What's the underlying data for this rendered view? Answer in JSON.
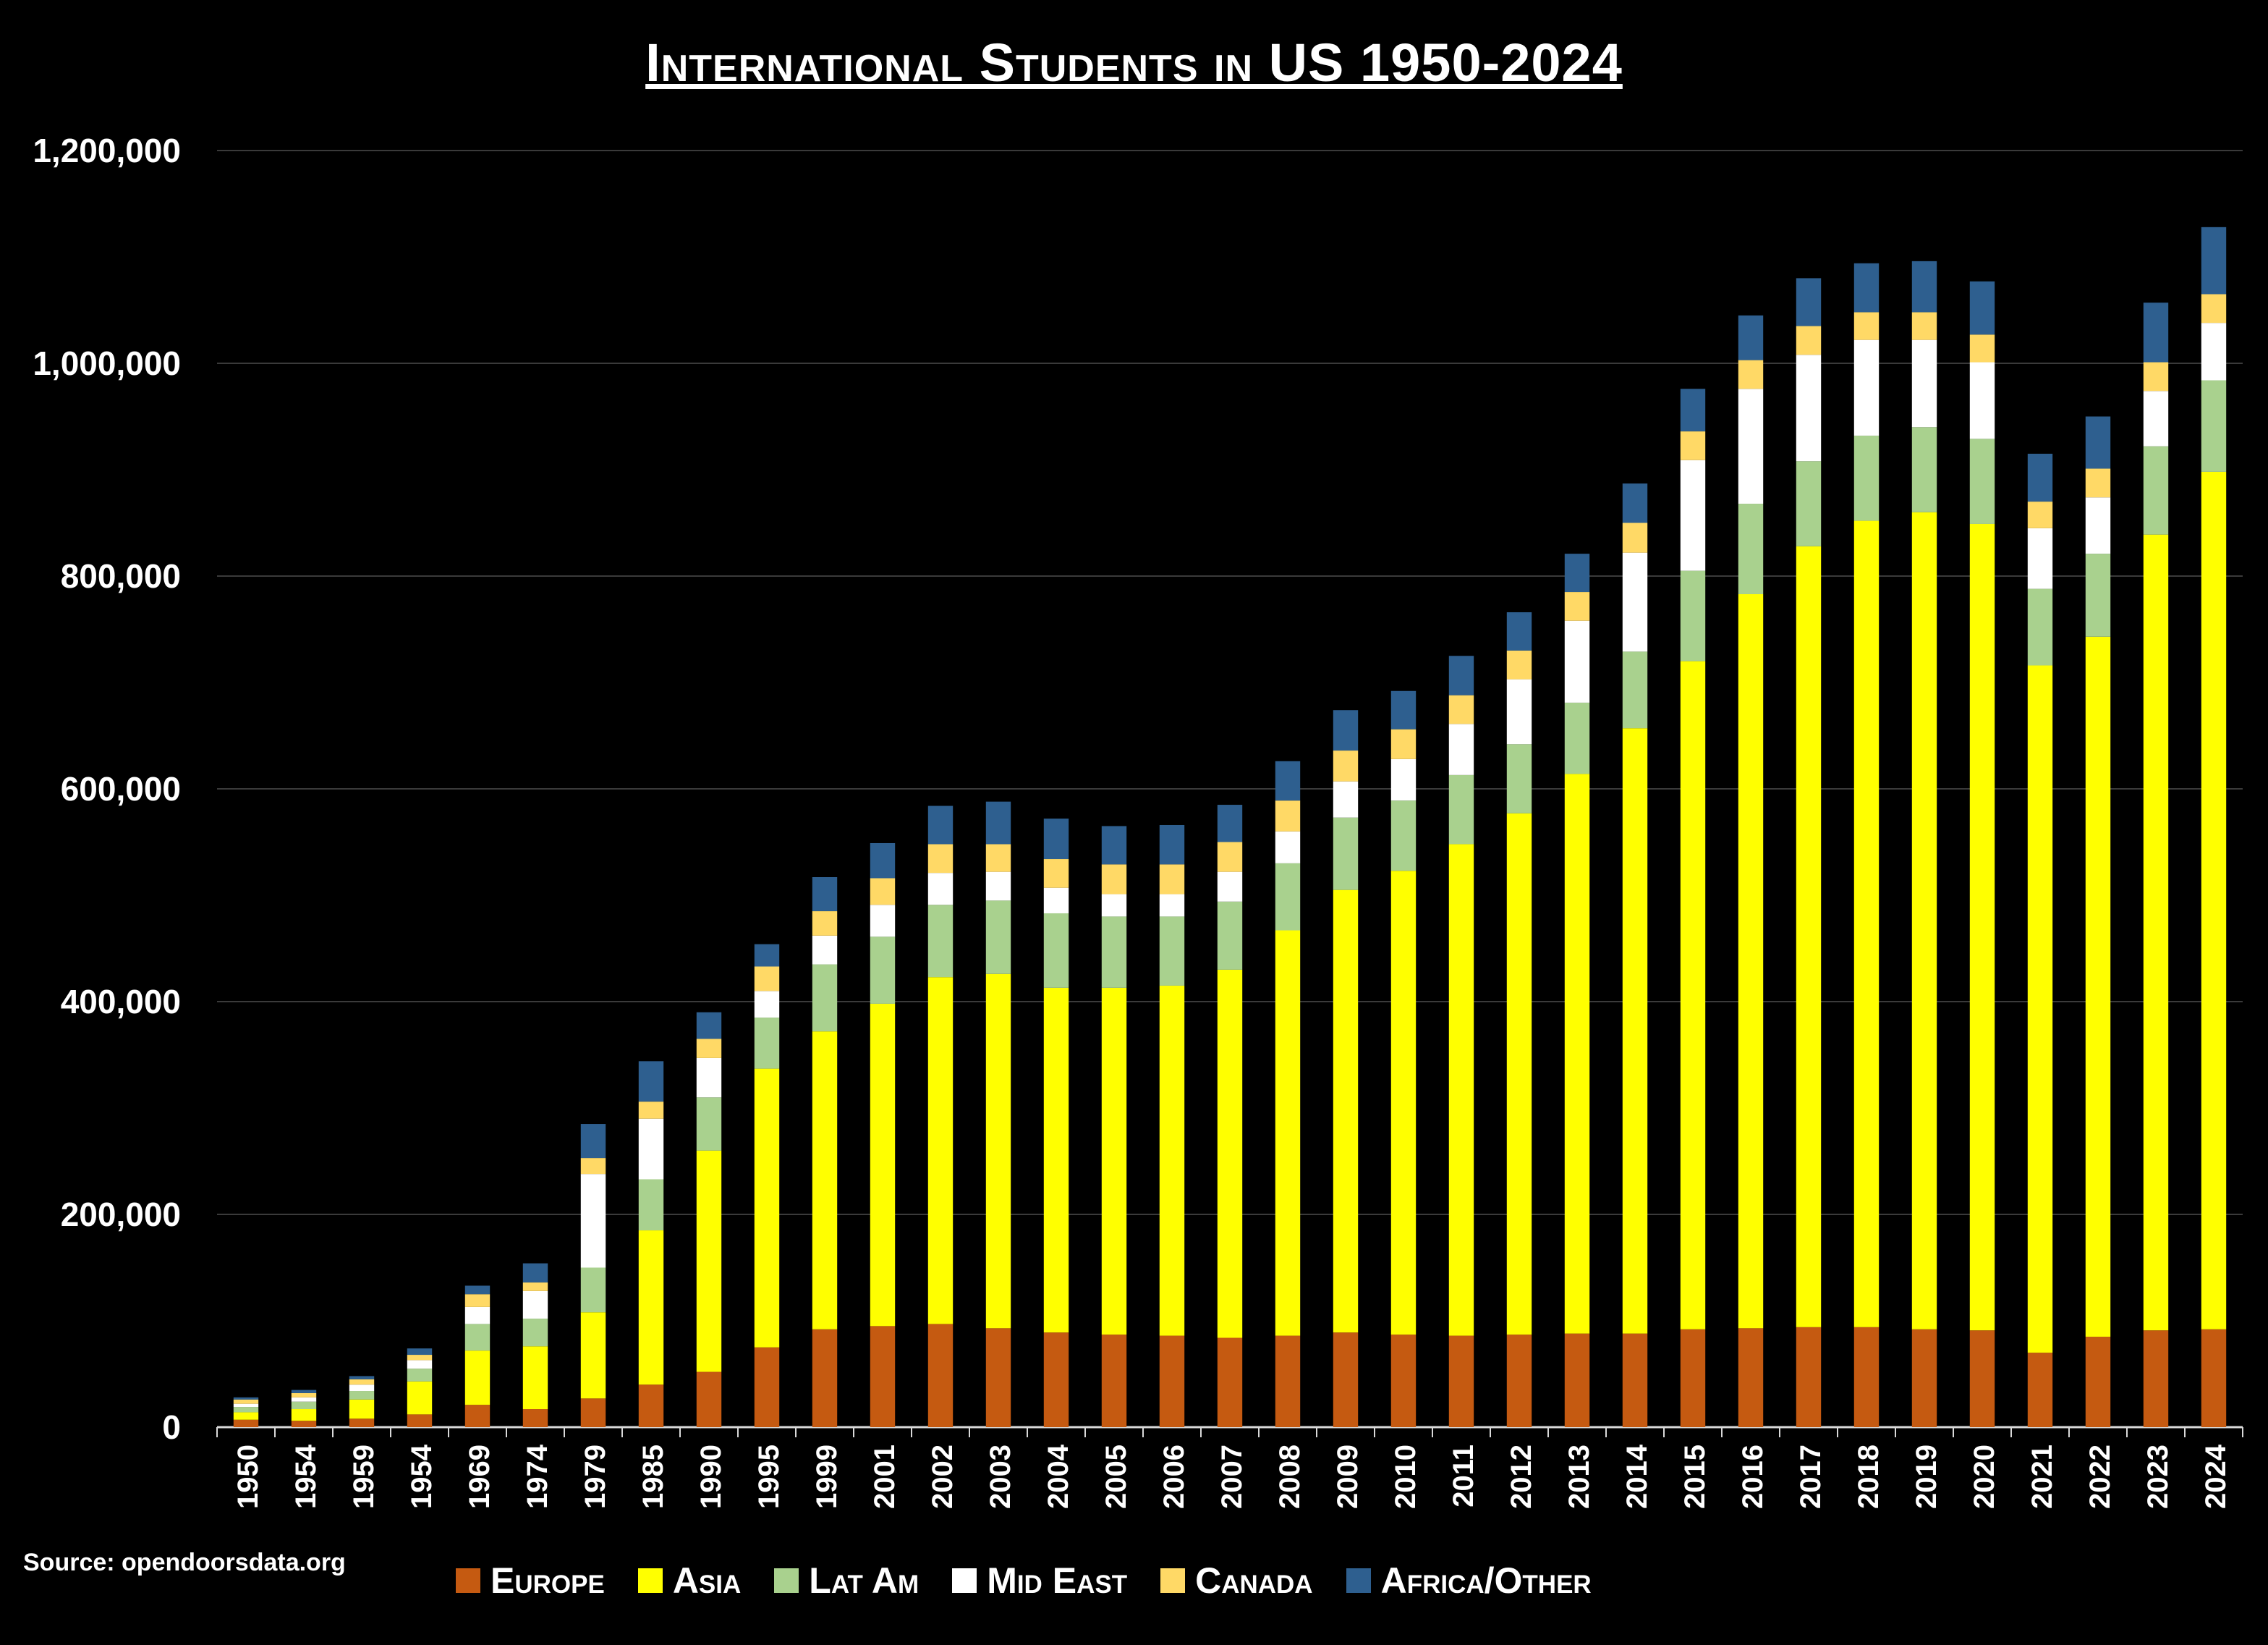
{
  "chart_data": {
    "type": "bar",
    "stacked": true,
    "title": "International Students in US 1950-2024",
    "source": "Source: opendoorsdata.org",
    "categories": [
      "1950",
      "1954",
      "1959",
      "1954",
      "1969",
      "1974",
      "1979",
      "1985",
      "1990",
      "1995",
      "1999",
      "2001",
      "2002",
      "2003",
      "2004",
      "2005",
      "2006",
      "2007",
      "2008",
      "2009",
      "2010",
      "2011",
      "2012",
      "2013",
      "2014",
      "2015",
      "2016",
      "2017",
      "2018",
      "2019",
      "2020",
      "2021",
      "2022",
      "2023",
      "2024"
    ],
    "ylim": [
      0,
      1200000
    ],
    "yticks": [
      0,
      200000,
      400000,
      600000,
      800000,
      1000000,
      1200000
    ],
    "ytick_labels": [
      "0",
      "200,000",
      "400,000",
      "600,000",
      "800,000",
      "1,000,000",
      "1,200,000"
    ],
    "grid": true,
    "legend_position": "bottom",
    "series": [
      {
        "name": "Europe",
        "color": "#c55a11",
        "values": [
          7000,
          6000,
          8000,
          12000,
          21000,
          17000,
          27000,
          40000,
          52000,
          75000,
          92000,
          95000,
          97000,
          93000,
          89000,
          87000,
          86000,
          84000,
          86000,
          89000,
          87000,
          86000,
          87000,
          88000,
          88000,
          92000,
          93000,
          94000,
          94000,
          92000,
          91000,
          70000,
          85000,
          91000,
          92000
        ]
      },
      {
        "name": "Asia",
        "color": "#ffff00",
        "values": [
          7000,
          11000,
          18000,
          31000,
          51000,
          59000,
          81000,
          145000,
          208000,
          262000,
          280000,
          303000,
          326000,
          333000,
          324000,
          326000,
          329000,
          346000,
          381000,
          416000,
          436000,
          462000,
          490000,
          526000,
          569000,
          628000,
          690000,
          734000,
          758000,
          768000,
          758000,
          646000,
          658000,
          748000,
          806000
        ]
      },
      {
        "name": "Lat Am",
        "color": "#a9d18e",
        "values": [
          5000,
          7000,
          8000,
          12000,
          25000,
          26000,
          42000,
          48000,
          50000,
          48000,
          63000,
          63000,
          68000,
          69000,
          70000,
          67000,
          65000,
          64000,
          63000,
          68000,
          66000,
          65000,
          65000,
          67000,
          72000,
          85000,
          85000,
          80000,
          80000,
          80000,
          80000,
          72000,
          78000,
          83000,
          86000
        ]
      },
      {
        "name": "Mid East",
        "color": "#ffffff",
        "values": [
          3000,
          4000,
          6000,
          8000,
          16000,
          26000,
          88000,
          57000,
          37000,
          25000,
          27000,
          30000,
          30000,
          27000,
          24000,
          21000,
          21000,
          28000,
          30000,
          34000,
          39000,
          48000,
          61000,
          77000,
          93000,
          104000,
          108000,
          100000,
          90000,
          82000,
          72000,
          57000,
          53000,
          52000,
          54000
        ]
      },
      {
        "name": "Canada",
        "color": "#ffd966",
        "values": [
          4000,
          4000,
          5000,
          5000,
          12000,
          8000,
          15000,
          16000,
          18000,
          23000,
          23000,
          25000,
          27000,
          26000,
          27000,
          28000,
          28000,
          28000,
          29000,
          29000,
          28000,
          27000,
          27000,
          27000,
          28000,
          27000,
          27000,
          27000,
          26000,
          26000,
          26000,
          25000,
          27000,
          27000,
          27000
        ]
      },
      {
        "name": "Africa/Other",
        "color": "#2e5f8f",
        "values": [
          2000,
          3000,
          3000,
          6000,
          8000,
          18000,
          32000,
          38000,
          25000,
          21000,
          32000,
          33000,
          36000,
          40000,
          38000,
          36000,
          37000,
          35000,
          37000,
          38000,
          36000,
          37000,
          36000,
          36000,
          37000,
          40000,
          42000,
          45000,
          46000,
          48000,
          50000,
          45000,
          49000,
          56000,
          63000
        ]
      }
    ]
  }
}
